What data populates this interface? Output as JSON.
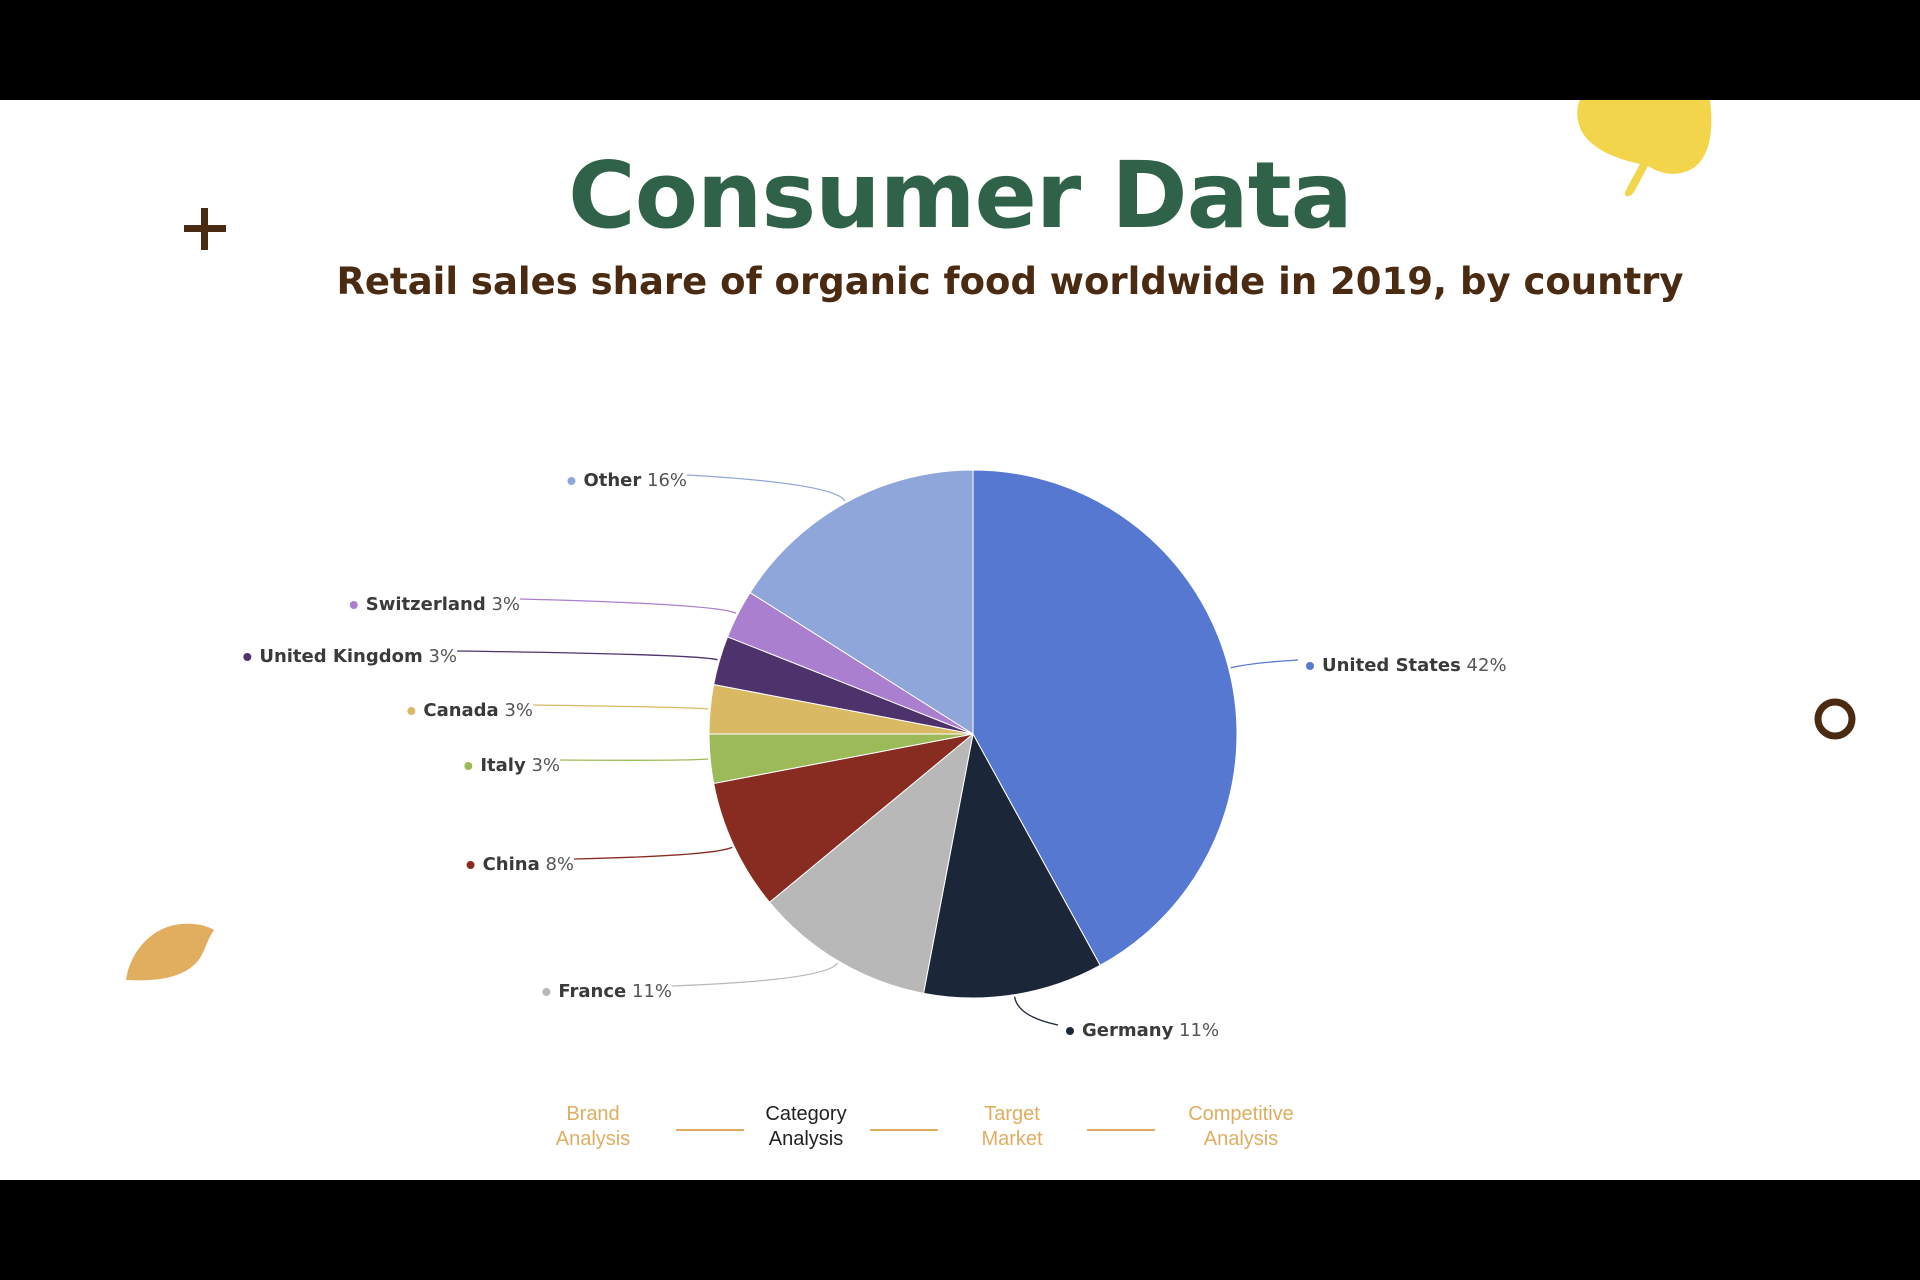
{
  "slide": {
    "title": "Consumer Data",
    "subtitle": "Retail sales share of organic food worldwide in 2019, by country"
  },
  "chart_data": {
    "type": "pie",
    "title": "Retail sales share of organic food worldwide in 2019, by country",
    "unit": "%",
    "slices": [
      {
        "label": "United States",
        "value": 42,
        "display": "42%",
        "color": "#5778d1"
      },
      {
        "label": "Germany",
        "value": 11,
        "display": "11%",
        "color": "#1c2639"
      },
      {
        "label": "France",
        "value": 11,
        "display": "11%",
        "color": "#b8b8b8"
      },
      {
        "label": "China",
        "value": 8,
        "display": "8%",
        "color": "#882c22"
      },
      {
        "label": "Italy",
        "value": 3,
        "display": "3%",
        "color": "#9dba58"
      },
      {
        "label": "Canada",
        "value": 3,
        "display": "3%",
        "color": "#d9b963"
      },
      {
        "label": "United Kingdom",
        "value": 3,
        "display": "3%",
        "color": "#4e326c"
      },
      {
        "label": "Switzerland",
        "value": 3,
        "display": "3%",
        "color": "#aa7fd0"
      },
      {
        "label": "Other",
        "value": 16,
        "display": "16%",
        "color": "#8fa6da"
      }
    ]
  },
  "nav": {
    "items": [
      {
        "label": "Brand\nAnalysis",
        "active": false
      },
      {
        "label": "Category\nAnalysis",
        "active": true
      },
      {
        "label": "Target\nMarket",
        "active": false
      },
      {
        "label": "Competitive\nAnalysis",
        "active": false
      }
    ],
    "accent_color": "#e0ad60"
  },
  "decorations": {
    "plus_color": "#4a2a10",
    "ring_color": "#4a2a10",
    "leaf_yellow": "#f3d54c",
    "leaf_orange": "#e1ad5e",
    "icons": [
      "plus-icon",
      "ring-icon",
      "yellow-leaf-icon",
      "orange-leaf-icon"
    ]
  }
}
